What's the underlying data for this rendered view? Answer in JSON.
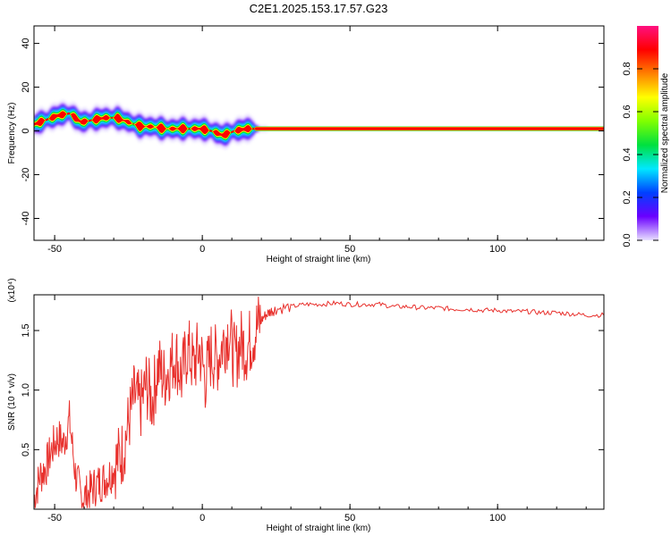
{
  "title": "C2E1.2025.153.17.57.G23",
  "colors": {
    "snr_line": "#e8302c",
    "axis": "#000000",
    "colorbar_stops": [
      "#e8e0ff",
      "#6a00ff",
      "#0040ff",
      "#00e8ff",
      "#00e040",
      "#80ff00",
      "#ffff00",
      "#ff8000",
      "#ff0000",
      "#ff1080"
    ]
  },
  "chart_data": [
    {
      "type": "heatmap",
      "name": "spectrogram",
      "xlabel": "Height of straight line (km)",
      "ylabel": "Frequency (Hz)",
      "xlim": [
        -57,
        136
      ],
      "ylim": [
        -50,
        48
      ],
      "xticks": [
        -50,
        0,
        50,
        100
      ],
      "yticks": [
        -40,
        -20,
        0,
        20,
        40
      ],
      "colorbar": {
        "label": "Normalized spectral amplitude",
        "range": [
          0,
          1
        ],
        "ticks": [
          "0.0",
          "0.2",
          "0.4",
          "0.6",
          "0.8"
        ]
      },
      "ridge": {
        "x": [
          -57,
          -53,
          -49,
          -45,
          -41,
          -37,
          -33,
          -29,
          -25,
          -21,
          -17,
          -13,
          -9,
          -5,
          -1,
          3,
          7,
          11,
          15,
          18,
          136
        ],
        "y": [
          3,
          5,
          7,
          8,
          4,
          5,
          6,
          6,
          4,
          2,
          2,
          1,
          1,
          1,
          1,
          0,
          -2,
          0,
          1,
          1,
          1
        ]
      }
    },
    {
      "type": "line",
      "name": "snr",
      "xlabel": "Height of straight line (km)",
      "ylabel": "SNR (10 * v/v)",
      "y_multiplier": "(x10⁴)",
      "xlim": [
        -57,
        136
      ],
      "ylim": [
        0,
        1.8
      ],
      "xticks": [
        -50,
        0,
        50,
        100
      ],
      "yticks": [
        "0.5",
        "1.0",
        "1.5"
      ],
      "ytick_values": [
        0.5,
        1.0,
        1.5
      ],
      "series": [
        {
          "x": [
            -57,
            -55,
            -53,
            -51,
            -49,
            -47,
            -45,
            -43,
            -41,
            -39,
            -37,
            -35,
            -33,
            -31,
            -29,
            -27,
            -25,
            -23,
            -21,
            -19,
            -17,
            -15,
            -13,
            -11,
            -9,
            -7,
            -5,
            -3,
            -1,
            1,
            3,
            5,
            7,
            9,
            11,
            13,
            15,
            17,
            19,
            21,
            23,
            25,
            30,
            35,
            40,
            45,
            50,
            55,
            60,
            65,
            70,
            75,
            80,
            85,
            90,
            95,
            100,
            105,
            110,
            115,
            120,
            125,
            130,
            136
          ],
          "y": [
            0.08,
            0.28,
            0.35,
            0.5,
            0.6,
            0.55,
            0.75,
            0.3,
            0.1,
            0.12,
            0.18,
            0.22,
            0.25,
            0.3,
            0.4,
            0.48,
            0.72,
            0.95,
            0.85,
            1.05,
            0.9,
            1.2,
            1.1,
            1.2,
            1.3,
            1.1,
            1.35,
            1.2,
            1.35,
            1.1,
            1.3,
            1.25,
            1.4,
            1.5,
            1.25,
            1.4,
            1.35,
            1.45,
            1.55,
            1.62,
            1.66,
            1.68,
            1.7,
            1.72,
            1.72,
            1.73,
            1.72,
            1.72,
            1.72,
            1.7,
            1.7,
            1.69,
            1.69,
            1.68,
            1.68,
            1.67,
            1.67,
            1.66,
            1.66,
            1.65,
            1.65,
            1.64,
            1.63,
            1.63
          ]
        }
      ]
    }
  ]
}
